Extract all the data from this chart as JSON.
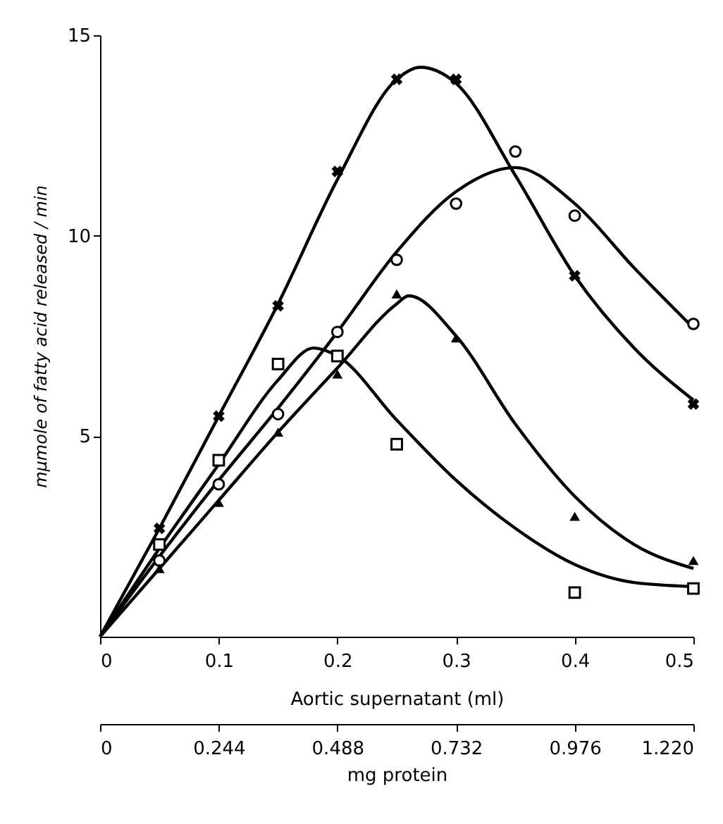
{
  "chart_data": {
    "type": "scatter",
    "xlabel": "Aortic supernatant (ml)",
    "ylabel": "mμmole of fatty acid released / min",
    "x2label": "mg protein",
    "xlim": [
      0,
      0.5
    ],
    "xticks": [
      0,
      0.1,
      0.2,
      0.3,
      0.4,
      0.5
    ],
    "x2lim": [
      0,
      1.22
    ],
    "x2ticks": [
      0,
      0.244,
      0.488,
      0.732,
      0.976,
      {
        "value": 1.22,
        "label": "1.220"
      }
    ],
    "ylim": [
      0,
      15
    ],
    "yticks": [
      5,
      10,
      15
    ],
    "grid": false,
    "series": [
      {
        "type": "line",
        "color": "#000000",
        "marker": "none",
        "x": [
          0,
          0.05,
          0.1,
          0.15,
          0.2,
          0.25,
          0.27,
          0.3,
          0.35,
          0.4,
          0.45,
          0.5
        ],
        "values": [
          0,
          2.7,
          5.5,
          8.3,
          11.4,
          13.9,
          14.2,
          13.8,
          11.5,
          9.0,
          7.2,
          5.9
        ]
      },
      {
        "type": "line",
        "color": "#000000",
        "marker": "none",
        "x": [
          0,
          0.05,
          0.1,
          0.15,
          0.2,
          0.25,
          0.3,
          0.35,
          0.4,
          0.45,
          0.5
        ],
        "values": [
          0,
          2.0,
          3.9,
          5.7,
          7.6,
          9.6,
          11.1,
          11.7,
          10.8,
          9.2,
          7.7
        ]
      },
      {
        "type": "line",
        "color": "#000000",
        "marker": "none",
        "x": [
          0,
          0.05,
          0.1,
          0.15,
          0.18,
          0.2,
          0.25,
          0.3,
          0.35,
          0.4,
          0.45,
          0.5
        ],
        "values": [
          0,
          2.2,
          4.3,
          6.4,
          7.2,
          7.0,
          5.4,
          3.9,
          2.7,
          1.8,
          1.35,
          1.25
        ]
      },
      {
        "type": "line",
        "color": "#000000",
        "marker": "none",
        "x": [
          0,
          0.05,
          0.1,
          0.15,
          0.2,
          0.25,
          0.26,
          0.3,
          0.35,
          0.4,
          0.45,
          0.5
        ],
        "values": [
          0,
          1.7,
          3.4,
          5.1,
          6.7,
          8.3,
          8.5,
          7.5,
          5.3,
          3.5,
          2.3,
          1.7
        ]
      },
      {
        "color": "#000000",
        "marker": "cross",
        "x": [
          0.05,
          0.1,
          0.15,
          0.2,
          0.25,
          0.3,
          0.4,
          0.5
        ],
        "values": [
          2.7,
          5.5,
          8.25,
          11.6,
          13.9,
          13.9,
          9.0,
          5.8
        ]
      },
      {
        "color": "#000000",
        "marker": "circle",
        "x": [
          0.05,
          0.1,
          0.15,
          0.2,
          0.25,
          0.3,
          0.35,
          0.4,
          0.5
        ],
        "values": [
          1.9,
          3.8,
          5.55,
          7.6,
          9.4,
          10.8,
          12.1,
          10.5,
          7.8
        ]
      },
      {
        "color": "#000000",
        "marker": "square",
        "x": [
          0.05,
          0.1,
          0.15,
          0.2,
          0.25,
          0.4,
          0.5
        ],
        "values": [
          2.3,
          4.4,
          6.8,
          7.0,
          4.8,
          1.1,
          1.2
        ]
      },
      {
        "color": "#000000",
        "marker": "triangle",
        "x": [
          0.05,
          0.1,
          0.15,
          0.2,
          0.25,
          0.3,
          0.4,
          0.5
        ],
        "values": [
          1.7,
          3.35,
          5.1,
          6.55,
          8.55,
          7.45,
          3.0,
          1.9
        ]
      }
    ]
  }
}
